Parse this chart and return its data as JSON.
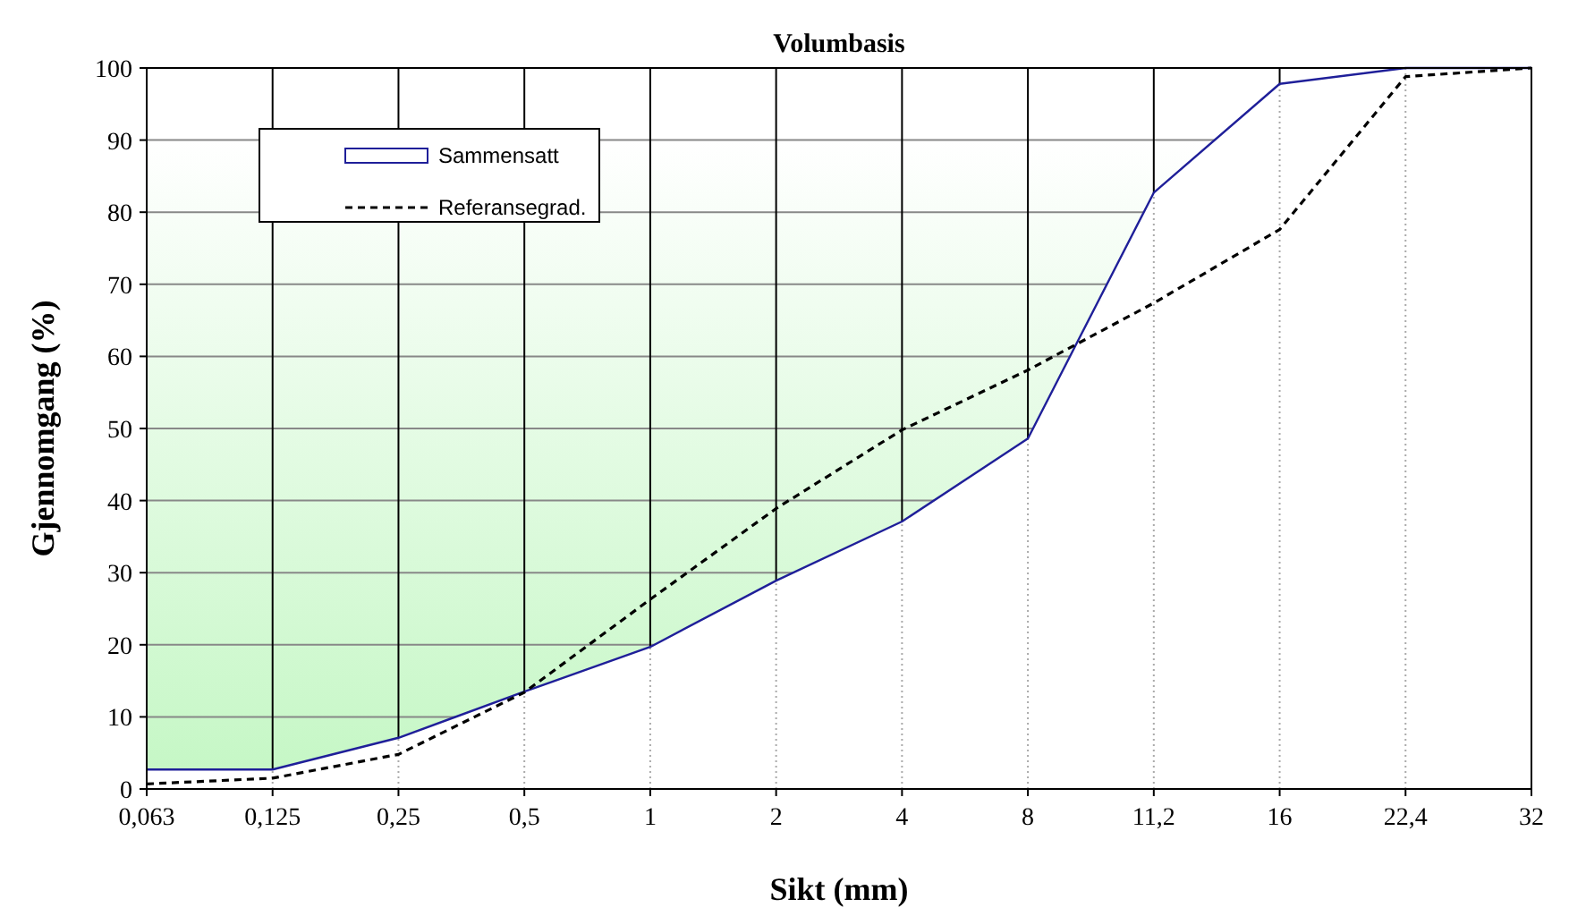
{
  "chart_data": {
    "type": "area",
    "title": "Volumbasis",
    "xlabel": "Sikt (mm)",
    "ylabel": "Gjennomgang (%)",
    "categories": [
      "0,063",
      "0,125",
      "0,25",
      "0,5",
      "1",
      "2",
      "4",
      "8",
      "11,2",
      "16",
      "22,4",
      "32"
    ],
    "series": [
      {
        "name": "Sammensatt",
        "color": "#1f1f99",
        "values": [
          2.7,
          2.7,
          7.1,
          13.5,
          19.7,
          28.9,
          37.1,
          48.6,
          82.7,
          97.8,
          100,
          100
        ]
      },
      {
        "name": "Referansegrad.",
        "type": "line",
        "color": "#000000",
        "line_style": "dashed",
        "values": [
          0.7,
          1.5,
          4.8,
          13.4,
          26.3,
          38.9,
          49.8,
          58.1,
          67.4,
          77.6,
          98.8,
          100
        ]
      }
    ],
    "ylim": [
      0,
      100
    ],
    "yticks": [
      0,
      10,
      20,
      30,
      40,
      50,
      60,
      70,
      80,
      90,
      100
    ],
    "grid": true,
    "legend": "top left"
  }
}
